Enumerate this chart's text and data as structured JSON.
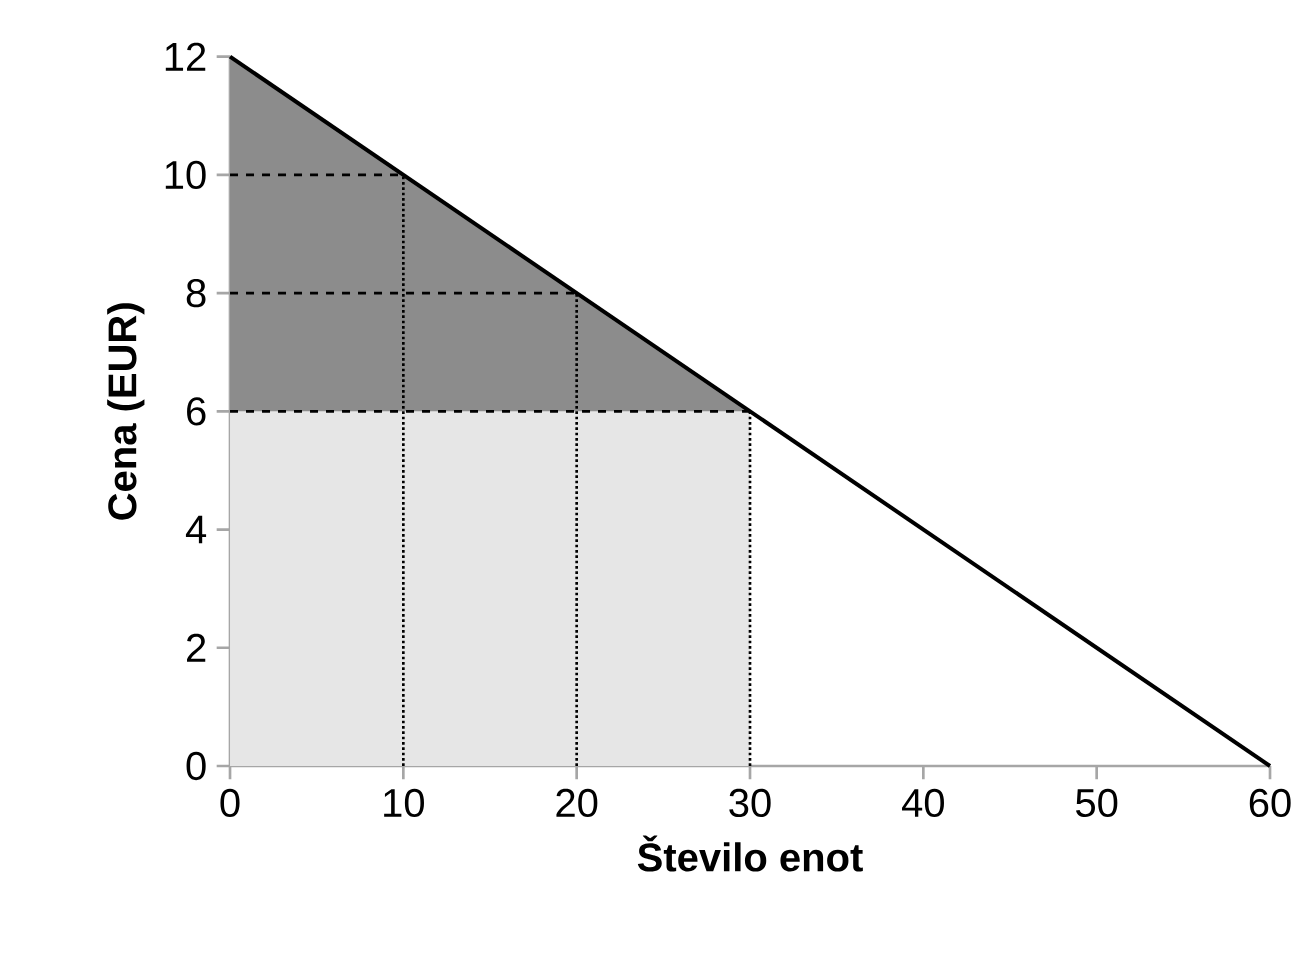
{
  "chart_data": {
    "type": "line",
    "xlabel": "Število enot",
    "ylabel": "Cena (EUR)",
    "xlim": [
      0,
      60
    ],
    "ylim": [
      0,
      12
    ],
    "xticks": [
      0,
      10,
      20,
      30,
      40,
      50,
      60
    ],
    "yticks": [
      0,
      2,
      4,
      6,
      8,
      10,
      12
    ],
    "grid": false,
    "marker": "none",
    "series": [
      {
        "type": "area",
        "color": "#8c8c8c",
        "x": [
          0,
          30
        ],
        "values": [
          12,
          6
        ]
      },
      {
        "type": "area",
        "color": "#e6e6e6",
        "line_style": "dashed",
        "x": [
          0,
          30
        ],
        "values": [
          6,
          6
        ]
      },
      {
        "color": "#000000",
        "line_style": "solid",
        "x": [
          0,
          60
        ],
        "values": [
          12,
          0
        ]
      },
      {
        "type": "line",
        "color": "#000000",
        "line_style": "dashed",
        "x": [
          0,
          10
        ],
        "values": [
          10,
          10
        ]
      },
      {
        "type": "line",
        "color": "#000000",
        "line_style": "dashed",
        "x": [
          0,
          20
        ],
        "values": [
          8,
          8
        ]
      },
      {
        "type": "line",
        "color": "#000000",
        "line_style": "dotted",
        "x": [
          10,
          10
        ],
        "values": [
          0,
          10
        ]
      },
      {
        "type": "line",
        "color": "#000000",
        "line_style": "dotted",
        "x": [
          20,
          20
        ],
        "values": [
          0,
          8
        ]
      },
      {
        "type": "line",
        "color": "#000000",
        "line_style": "dotted",
        "x": [
          30,
          30
        ],
        "values": [
          0,
          6
        ]
      }
    ]
  }
}
